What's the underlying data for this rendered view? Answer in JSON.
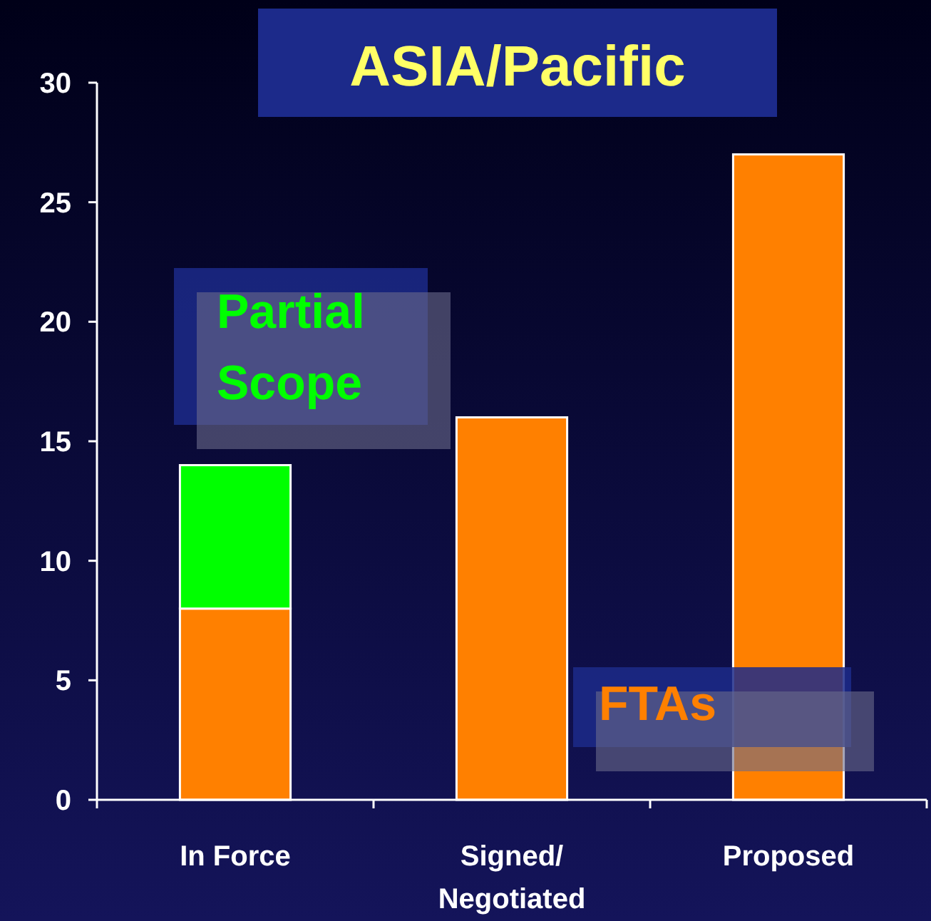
{
  "chart_data": {
    "type": "bar",
    "title": "ASIA/Pacific",
    "categories": [
      "In Force",
      "Signed/\nNegotiated",
      "Proposed"
    ],
    "stacked": true,
    "series": [
      {
        "name": "FTAs",
        "color": "#ff8000",
        "values": [
          8,
          16,
          27
        ]
      },
      {
        "name": "Partial Scope",
        "color": "#00ff00",
        "values": [
          6,
          null,
          null
        ]
      }
    ],
    "ylim": [
      0,
      30
    ],
    "yticks": [
      0,
      5,
      10,
      15,
      20,
      25,
      30
    ],
    "grid": false
  }
}
